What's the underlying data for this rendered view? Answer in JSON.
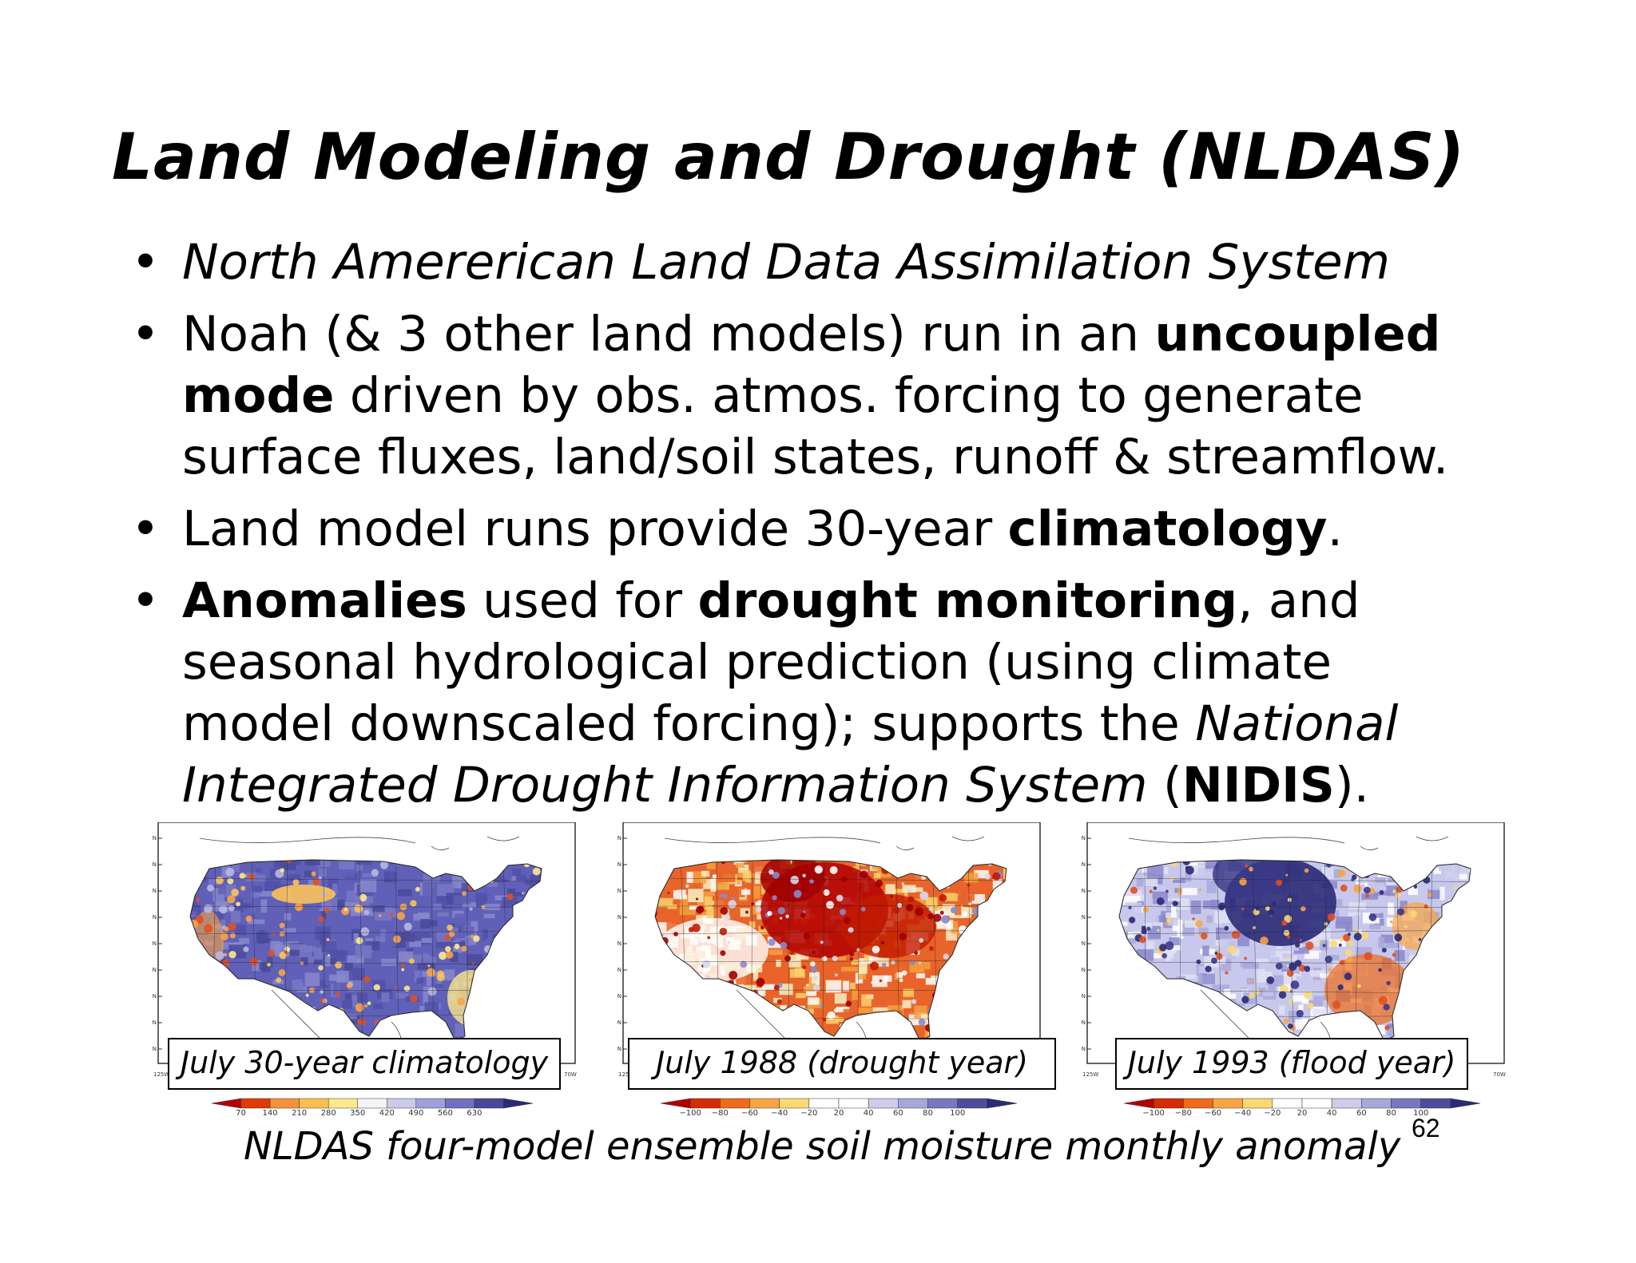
{
  "slide": {
    "title": "Land Modeling and Drought (NLDAS)",
    "bullet_symbol": "•",
    "bullets": [
      {
        "lines": [
          [
            {
              "text": "North Amererican Land Data Assimilation System",
              "style": "italic"
            }
          ]
        ]
      },
      {
        "lines": [
          [
            {
              "text": "Noah (& 3 other land models) run in an ",
              "style": "normal"
            },
            {
              "text": "uncoupled",
              "style": "bold"
            }
          ],
          [
            {
              "text": "mode",
              "style": "bold"
            },
            {
              "text": " driven by obs. atmos. forcing to generate",
              "style": "normal"
            }
          ],
          [
            {
              "text": "surface fluxes, land/soil states, runoff & streamflow.",
              "style": "normal"
            }
          ]
        ]
      },
      {
        "lines": [
          [
            {
              "text": "Land model runs provide 30-year ",
              "style": "normal"
            },
            {
              "text": "climatology",
              "style": "bold"
            },
            {
              "text": ".",
              "style": "normal"
            }
          ]
        ]
      },
      {
        "lines": [
          [
            {
              "text": "Anomalies",
              "style": "bold"
            },
            {
              "text": " used for ",
              "style": "normal"
            },
            {
              "text": "drought monitoring",
              "style": "bold"
            },
            {
              "text": ", and",
              "style": "normal"
            }
          ],
          [
            {
              "text": "seasonal hydrological prediction (using climate",
              "style": "normal"
            }
          ],
          [
            {
              "text": "model downscaled forcing); supports the ",
              "style": "normal"
            },
            {
              "text": "National",
              "style": "italic"
            }
          ],
          [
            {
              "text": "Integrated Drought Information System",
              "style": "italic"
            },
            {
              "text": " (",
              "style": "normal"
            },
            {
              "text": "NIDIS",
              "style": "bold"
            },
            {
              "text": ").",
              "style": "normal"
            }
          ]
        ]
      }
    ]
  },
  "maps": [
    {
      "caption": "July 30-year climatology",
      "lat_labels": [
        "51N",
        "48N",
        "45N",
        "42N",
        "39N",
        "36N",
        "33N",
        "30N",
        "27N"
      ],
      "lon_labels": [
        "125W",
        "70W"
      ],
      "colorbar_ticks": [
        "70",
        "140",
        "210",
        "280",
        "350",
        "420",
        "490",
        "560",
        "630"
      ],
      "colorbar_colors": [
        "#b50000",
        "#e03a00",
        "#f7913a",
        "#fbbf50",
        "#fde98c",
        "#f4f4f4",
        "#cacaea",
        "#a0a0d8",
        "#7070c0",
        "#484898",
        "#2a2a78"
      ],
      "theme": "wet"
    },
    {
      "caption": "July 1988 (drought year)",
      "lat_labels": [
        "51N",
        "48N",
        "45N",
        "42N",
        "39N",
        "36N",
        "33N",
        "30N",
        "27N"
      ],
      "lon_labels": [
        "125W",
        "70W"
      ],
      "colorbar_ticks": [
        "−100",
        "−80",
        "−60",
        "−40",
        "−20",
        "20",
        "40",
        "60",
        "80",
        "100"
      ],
      "colorbar_colors": [
        "#b50000",
        "#d52b00",
        "#ee6b1a",
        "#f8a444",
        "#fbd871",
        "#ffffff",
        "#ffffff",
        "#cdcdea",
        "#a7a7d8",
        "#7878c0",
        "#4d4d9c",
        "#2a2a78"
      ],
      "theme": "dry"
    },
    {
      "caption": "July 1993 (flood year)",
      "lat_labels": [
        "51N",
        "48N",
        "45N",
        "42N",
        "39N",
        "36N",
        "33N",
        "30N",
        "27N"
      ],
      "lon_labels": [
        "125W",
        "70W"
      ],
      "colorbar_ticks": [
        "−100",
        "−80",
        "−60",
        "−40",
        "−20",
        "20",
        "40",
        "60",
        "80",
        "100"
      ],
      "colorbar_colors": [
        "#b50000",
        "#d52b00",
        "#ee6b1a",
        "#f8a444",
        "#fbd871",
        "#ffffff",
        "#ffffff",
        "#cdcdea",
        "#a7a7d8",
        "#7878c0",
        "#4d4d9c",
        "#2a2a78"
      ],
      "theme": "flood"
    }
  ],
  "figure_caption": "NLDAS four-model ensemble soil moisture monthly anomaly",
  "slide_number": "62"
}
